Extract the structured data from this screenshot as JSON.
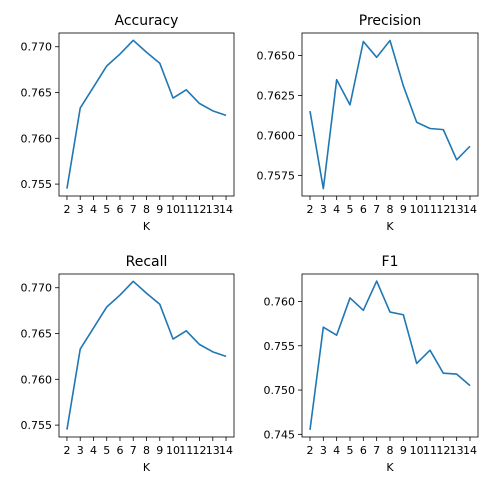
{
  "chart_data": [
    {
      "type": "line",
      "title": "Accuracy",
      "xlabel": "K",
      "ylabel": "",
      "x": [
        2,
        3,
        4,
        5,
        6,
        7,
        8,
        9,
        10,
        11,
        12,
        13,
        14
      ],
      "values": [
        0.7545,
        0.7633,
        0.7656,
        0.7679,
        0.7692,
        0.7707,
        0.7694,
        0.7682,
        0.7644,
        0.7653,
        0.7638,
        0.763,
        0.7625
      ],
      "ylim": [
        0.7537,
        0.7715
      ],
      "yticks": [
        0.755,
        0.76,
        0.765,
        0.77
      ],
      "ytick_labels": [
        "0.755",
        "0.760",
        "0.765",
        "0.770"
      ],
      "color": "#1f77b4"
    },
    {
      "type": "line",
      "title": "Precision",
      "xlabel": "K",
      "ylabel": "",
      "x": [
        2,
        3,
        4,
        5,
        6,
        7,
        8,
        9,
        10,
        11,
        12,
        13,
        14
      ],
      "values": [
        0.76152,
        0.75667,
        0.76348,
        0.76191,
        0.76587,
        0.76488,
        0.76593,
        0.7631,
        0.76082,
        0.76043,
        0.76036,
        0.75847,
        0.75932
      ],
      "ylim": [
        0.75621,
        0.7664
      ],
      "yticks": [
        0.7575,
        0.76,
        0.7625,
        0.765
      ],
      "ytick_labels": [
        "0.7575",
        "0.7600",
        "0.7625",
        "0.7650"
      ],
      "color": "#1f77b4"
    },
    {
      "type": "line",
      "title": "Recall",
      "xlabel": "K",
      "ylabel": "",
      "x": [
        2,
        3,
        4,
        5,
        6,
        7,
        8,
        9,
        10,
        11,
        12,
        13,
        14
      ],
      "values": [
        0.7545,
        0.7633,
        0.7656,
        0.7679,
        0.7692,
        0.7707,
        0.7694,
        0.7682,
        0.7644,
        0.7653,
        0.7638,
        0.763,
        0.7625
      ],
      "ylim": [
        0.7537,
        0.7715
      ],
      "yticks": [
        0.755,
        0.76,
        0.765,
        0.77
      ],
      "ytick_labels": [
        "0.755",
        "0.760",
        "0.765",
        "0.770"
      ],
      "color": "#1f77b4"
    },
    {
      "type": "line",
      "title": "F1",
      "xlabel": "K",
      "ylabel": "",
      "x": [
        2,
        3,
        4,
        5,
        6,
        7,
        8,
        9,
        10,
        11,
        12,
        13,
        14
      ],
      "values": [
        0.7455,
        0.7571,
        0.7562,
        0.7604,
        0.759,
        0.7623,
        0.7588,
        0.7585,
        0.753,
        0.7545,
        0.7519,
        0.7518,
        0.7505
      ],
      "ylim": [
        0.7447,
        0.7631
      ],
      "yticks": [
        0.745,
        0.75,
        0.755,
        0.76
      ],
      "ytick_labels": [
        "0.745",
        "0.750",
        "0.755",
        "0.760"
      ],
      "color": "#1f77b4"
    }
  ]
}
